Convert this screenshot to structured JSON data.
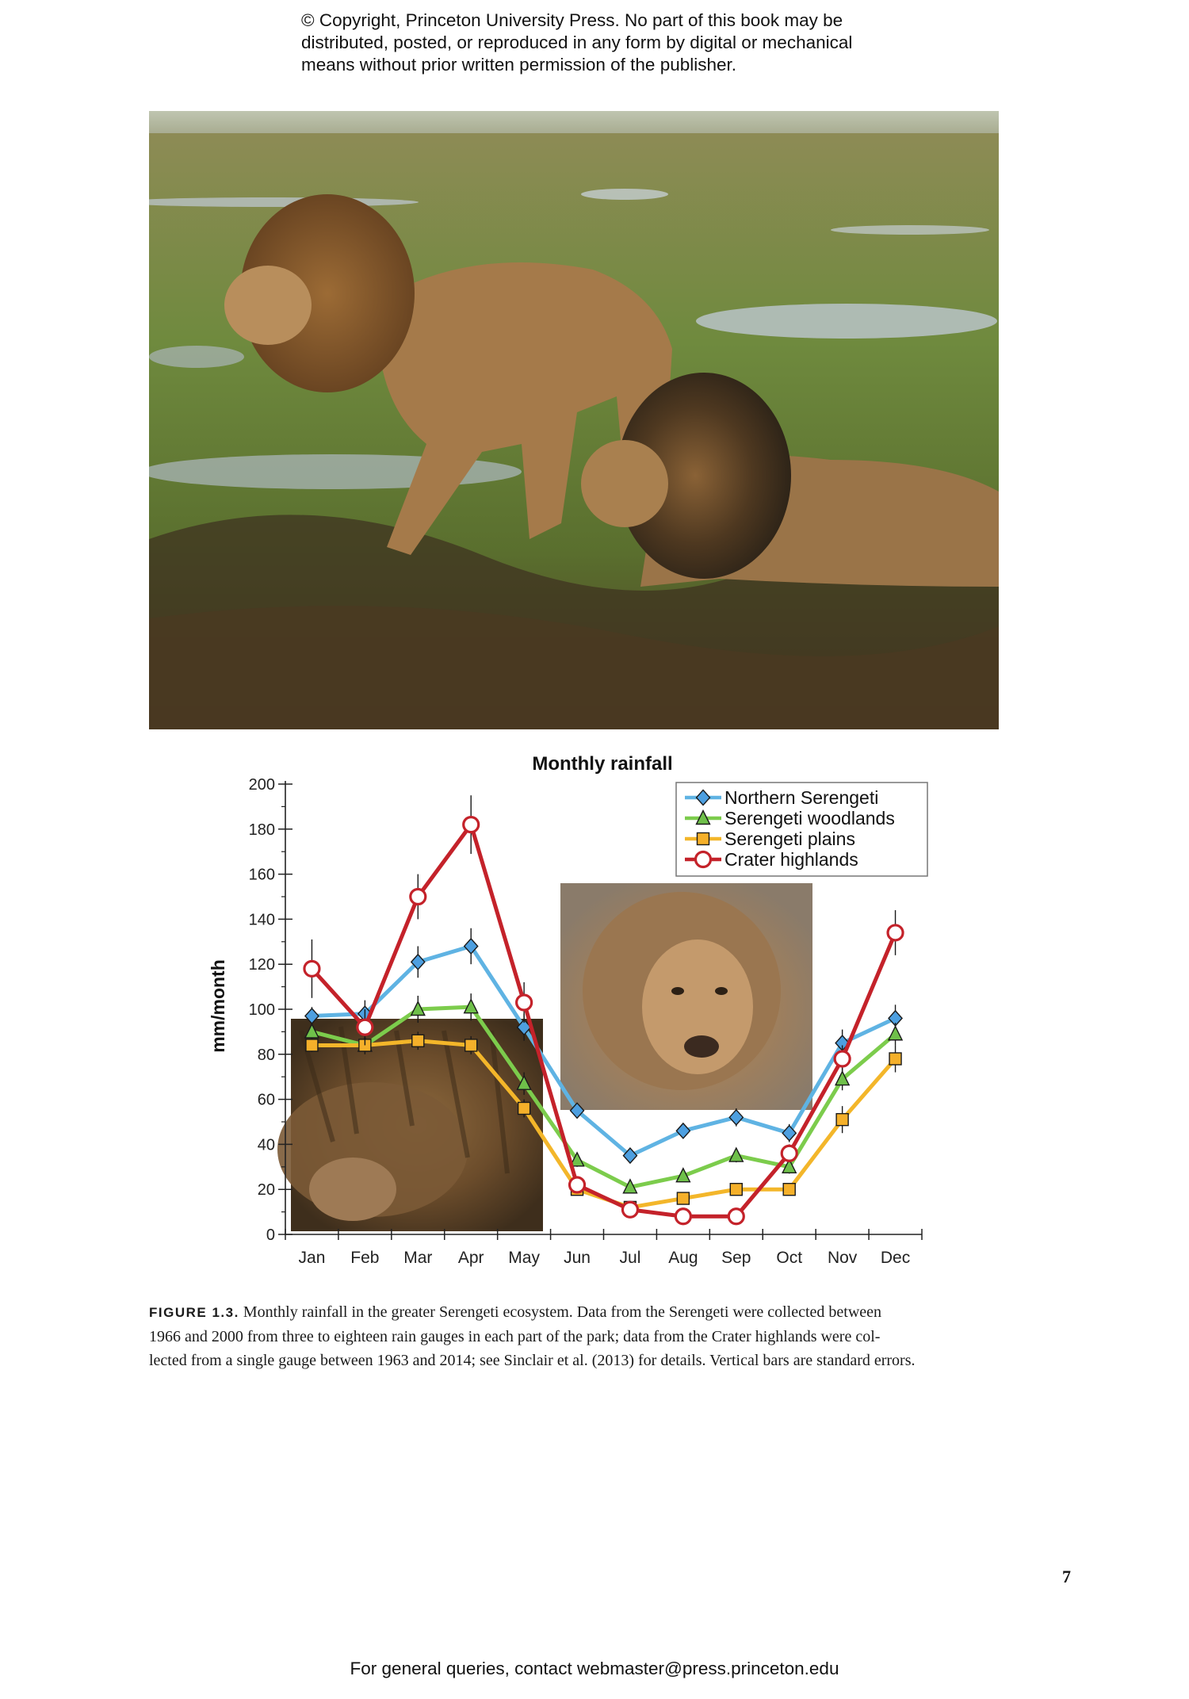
{
  "copyright_lines": [
    "© Copyright, Princeton University Press. No part of this book may be",
    "distributed, posted, or reproduced in any form by digital or mechanical",
    "means without prior written permission of the publisher."
  ],
  "chart_data": {
    "type": "line",
    "title": "Monthly rainfall",
    "xlabel": "",
    "ylabel": "mm/month",
    "ylim": [
      0,
      200
    ],
    "yticks": [
      0,
      20,
      40,
      60,
      80,
      100,
      120,
      140,
      160,
      180,
      200
    ],
    "categories": [
      "Jan",
      "Feb",
      "Mar",
      "Apr",
      "May",
      "Jun",
      "Jul",
      "Aug",
      "Sep",
      "Oct",
      "Nov",
      "Dec"
    ],
    "grid": false,
    "legend_position": "top-right",
    "error_bars": "standard errors",
    "series": [
      {
        "name": "Northern Serengeti",
        "color": "#5fb3e3",
        "marker": "diamond",
        "marker_fill": "#4d9fe0",
        "values": [
          97,
          98,
          121,
          128,
          92,
          55,
          35,
          46,
          52,
          45,
          85,
          96
        ],
        "errors": [
          4,
          6,
          7,
          8,
          6,
          3,
          3,
          3,
          4,
          4,
          6,
          6
        ]
      },
      {
        "name": "Serengeti woodlands",
        "color": "#7ccc4c",
        "marker": "triangle",
        "marker_fill": "#6fc04a",
        "values": [
          90,
          84,
          100,
          101,
          67,
          33,
          21,
          26,
          35,
          30,
          69,
          89
        ],
        "errors": [
          4,
          4,
          6,
          6,
          5,
          3,
          2,
          2,
          3,
          3,
          5,
          5
        ]
      },
      {
        "name": "Serengeti plains",
        "color": "#f3b62a",
        "marker": "square",
        "marker_fill": "#f5b02a",
        "values": [
          84,
          84,
          86,
          84,
          56,
          20,
          12,
          16,
          20,
          20,
          51,
          78
        ],
        "errors": [
          3,
          3,
          4,
          4,
          4,
          2,
          1,
          2,
          2,
          2,
          6,
          6
        ]
      },
      {
        "name": "Crater highlands",
        "color": "#c4222a",
        "marker": "circle-open",
        "marker_fill": "#ffffff",
        "values": [
          118,
          92,
          150,
          182,
          103,
          22,
          11,
          8,
          8,
          36,
          78,
          134
        ],
        "errors": [
          13,
          8,
          10,
          13,
          9,
          3,
          2,
          2,
          2,
          4,
          6,
          10
        ]
      }
    ]
  },
  "figure_caption": {
    "label": "FIGURE 1.3.",
    "lines": [
      "Monthly rainfall in the greater Serengeti ecosystem. Data from the Serengeti were collected between",
      "1966 and 2000 from three to eighteen rain gauges in each part of the park; data from the Crater highlands were col-",
      "lected from a single gauge between 1963 and 2014; see Sinclair et al. (2013) for details. Vertical bars are standard errors."
    ]
  },
  "page_number": "7",
  "footer_text": "For general queries, contact webmaster@press.princeton.edu"
}
